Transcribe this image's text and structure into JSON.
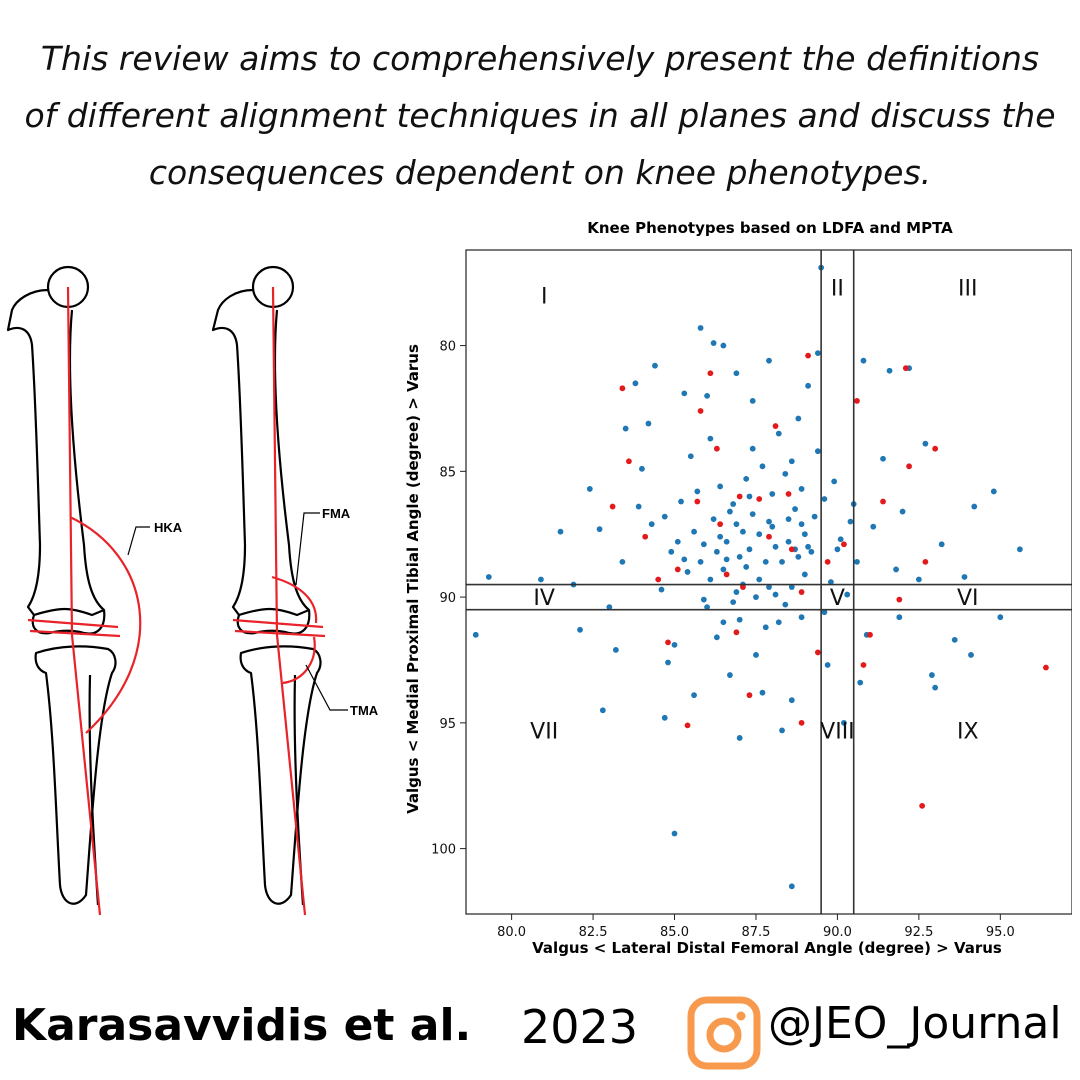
{
  "headline": "This review aims to comprehensively present the definitions of different alignment techniques in all planes and discuss the consequences dependent on knee phenotypes.",
  "leg_diagram": {
    "labels": {
      "hka": "HKA",
      "fma": "FMA",
      "tma": "TMA"
    },
    "line_color": "#e8232a"
  },
  "chart_data": {
    "type": "scatter",
    "title": "Knee Phenotypes based on LDFA and MPTA",
    "xlabel": "Valgus < Lateral Distal Femoral Angle (degree) > Varus",
    "ylabel": "Valgus < Medial Proximal Tibial Angle (degree) > Varus",
    "xlim": [
      78.6,
      97.2
    ],
    "ylim": [
      102.6,
      76.2
    ],
    "y_inverted": true,
    "xticks": [
      "80.0",
      "82.5",
      "85.0",
      "87.5",
      "90.0",
      "92.5",
      "95.0"
    ],
    "yticks": [
      "80",
      "85",
      "90",
      "95",
      "100"
    ],
    "vertical_lines": [
      89.5,
      90.5
    ],
    "horizontal_lines": [
      89.5,
      90.5
    ],
    "grid": false,
    "region_labels": [
      {
        "text": "I",
        "x": 81.0,
        "y": 78.0
      },
      {
        "text": "II",
        "x": 90.0,
        "y": 77.7
      },
      {
        "text": "III",
        "x": 94.0,
        "y": 77.7
      },
      {
        "text": "IV",
        "x": 81.0,
        "y": 90.0
      },
      {
        "text": "V",
        "x": 90.0,
        "y": 90.0
      },
      {
        "text": "VI",
        "x": 94.0,
        "y": 90.0
      },
      {
        "text": "VII",
        "x": 81.0,
        "y": 95.3
      },
      {
        "text": "VIII",
        "x": 90.0,
        "y": 95.3
      },
      {
        "text": "IX",
        "x": 94.0,
        "y": 95.3
      }
    ],
    "series": [
      {
        "color": "#1f77b4",
        "points": [
          [
            88.3,
            88.6
          ],
          [
            87.1,
            87.4
          ],
          [
            86.5,
            88.9
          ],
          [
            88.9,
            87.1
          ],
          [
            87.6,
            89.3
          ],
          [
            85.9,
            87.9
          ],
          [
            89.2,
            88.2
          ],
          [
            86.8,
            86.3
          ],
          [
            88.0,
            85.9
          ],
          [
            87.3,
            88.1
          ],
          [
            85.4,
            89.0
          ],
          [
            90.1,
            87.7
          ],
          [
            88.6,
            89.6
          ],
          [
            86.2,
            86.9
          ],
          [
            87.9,
            87.0
          ],
          [
            89.6,
            86.1
          ],
          [
            84.9,
            88.2
          ],
          [
            88.4,
            90.3
          ],
          [
            86.9,
            89.8
          ],
          [
            87.7,
            84.8
          ],
          [
            90.6,
            88.6
          ],
          [
            85.7,
            85.8
          ],
          [
            88.1,
            88.0
          ],
          [
            87.0,
            88.4
          ],
          [
            86.4,
            87.6
          ],
          [
            89.0,
            89.1
          ],
          [
            87.4,
            86.7
          ],
          [
            88.7,
            86.5
          ],
          [
            86.0,
            90.4
          ],
          [
            91.1,
            87.2
          ],
          [
            84.3,
            87.1
          ],
          [
            87.8,
            91.2
          ],
          [
            89.4,
            84.2
          ],
          [
            85.2,
            86.2
          ],
          [
            88.5,
            87.8
          ],
          [
            86.6,
            88.5
          ],
          [
            87.2,
            85.3
          ],
          [
            90.3,
            89.9
          ],
          [
            86.3,
            91.6
          ],
          [
            88.9,
            90.8
          ],
          [
            84.6,
            89.7
          ],
          [
            91.8,
            88.9
          ],
          [
            83.9,
            86.4
          ],
          [
            87.5,
            92.3
          ],
          [
            89.9,
            85.4
          ],
          [
            85.5,
            84.4
          ],
          [
            92.0,
            86.6
          ],
          [
            86.1,
            83.7
          ],
          [
            88.2,
            83.5
          ],
          [
            83.4,
            88.6
          ],
          [
            90.9,
            91.5
          ],
          [
            85.0,
            91.9
          ],
          [
            92.5,
            89.3
          ],
          [
            84.0,
            84.9
          ],
          [
            89.7,
            92.7
          ],
          [
            86.7,
            93.1
          ],
          [
            88.8,
            82.9
          ],
          [
            91.4,
            84.5
          ],
          [
            83.0,
            90.4
          ],
          [
            87.4,
            82.2
          ],
          [
            93.2,
            87.9
          ],
          [
            84.8,
            92.6
          ],
          [
            82.7,
            87.3
          ],
          [
            90.7,
            93.4
          ],
          [
            86.0,
            82.0
          ],
          [
            88.6,
            94.1
          ],
          [
            91.9,
            90.8
          ],
          [
            82.4,
            85.7
          ],
          [
            93.9,
            89.2
          ],
          [
            85.6,
            93.9
          ],
          [
            89.1,
            81.6
          ],
          [
            84.2,
            83.1
          ],
          [
            92.7,
            83.9
          ],
          [
            81.9,
            89.5
          ],
          [
            90.2,
            95.0
          ],
          [
            86.9,
            81.1
          ],
          [
            94.2,
            86.4
          ],
          [
            83.2,
            92.1
          ],
          [
            87.9,
            80.6
          ],
          [
            82.1,
            91.3
          ],
          [
            93.6,
            91.7
          ],
          [
            85.3,
            81.9
          ],
          [
            89.4,
            80.3
          ],
          [
            81.5,
            87.4
          ],
          [
            94.8,
            85.8
          ],
          [
            84.7,
            94.8
          ],
          [
            86.2,
            79.9
          ],
          [
            92.9,
            93.1
          ],
          [
            80.9,
            89.3
          ],
          [
            88.3,
            95.3
          ],
          [
            83.8,
            81.5
          ],
          [
            91.6,
            81.0
          ],
          [
            95.0,
            90.8
          ],
          [
            87.0,
            95.6
          ],
          [
            84.4,
            80.8
          ],
          [
            79.3,
            89.2
          ],
          [
            89.5,
            76.9
          ],
          [
            85.8,
            79.3
          ],
          [
            92.2,
            80.9
          ],
          [
            82.8,
            94.5
          ],
          [
            95.6,
            88.1
          ],
          [
            93.0,
            93.6
          ],
          [
            88.6,
            101.5
          ],
          [
            85.0,
            99.4
          ],
          [
            78.9,
            91.5
          ],
          [
            94.1,
            92.3
          ],
          [
            86.5,
            80.0
          ],
          [
            90.8,
            80.6
          ],
          [
            83.5,
            83.3
          ],
          [
            87.7,
            93.8
          ],
          [
            88.0,
            87.2
          ],
          [
            87.2,
            88.8
          ],
          [
            86.6,
            87.8
          ],
          [
            89.1,
            88.0
          ],
          [
            88.5,
            86.9
          ],
          [
            86.9,
            87.1
          ],
          [
            87.5,
            90.0
          ],
          [
            85.8,
            88.6
          ],
          [
            89.8,
            89.4
          ],
          [
            88.8,
            88.4
          ],
          [
            87.3,
            86.0
          ],
          [
            86.1,
            89.3
          ],
          [
            88.1,
            89.9
          ],
          [
            89.3,
            86.8
          ],
          [
            85.6,
            87.4
          ],
          [
            87.8,
            88.6
          ],
          [
            86.4,
            85.6
          ],
          [
            90.4,
            87.0
          ],
          [
            88.4,
            85.1
          ],
          [
            85.1,
            87.8
          ],
          [
            87.6,
            87.5
          ],
          [
            86.8,
            90.2
          ],
          [
            89.6,
            90.6
          ],
          [
            87.1,
            89.5
          ],
          [
            88.7,
            88.1
          ],
          [
            86.3,
            88.2
          ],
          [
            90.0,
            88.1
          ],
          [
            85.3,
            88.5
          ],
          [
            88.9,
            85.7
          ],
          [
            87.9,
            89.6
          ],
          [
            86.7,
            86.6
          ],
          [
            89.0,
            87.5
          ],
          [
            85.9,
            90.1
          ],
          [
            88.2,
            91.0
          ],
          [
            87.4,
            84.1
          ],
          [
            86.5,
            91.0
          ],
          [
            90.5,
            86.3
          ],
          [
            84.7,
            86.8
          ],
          [
            88.6,
            84.6
          ],
          [
            87.0,
            90.9
          ]
        ]
      },
      {
        "color": "#e31a1c",
        "points": [
          [
            87.6,
            86.1
          ],
          [
            85.1,
            88.9
          ],
          [
            88.9,
            89.8
          ],
          [
            86.3,
            84.1
          ],
          [
            90.2,
            87.9
          ],
          [
            84.1,
            87.6
          ],
          [
            88.1,
            83.2
          ],
          [
            86.9,
            91.4
          ],
          [
            91.4,
            86.2
          ],
          [
            83.1,
            86.4
          ],
          [
            89.4,
            92.2
          ],
          [
            85.8,
            82.6
          ],
          [
            92.2,
            84.8
          ],
          [
            84.8,
            91.8
          ],
          [
            90.6,
            82.2
          ],
          [
            87.3,
            93.9
          ],
          [
            92.7,
            88.6
          ],
          [
            83.6,
            84.6
          ],
          [
            89.1,
            80.4
          ],
          [
            86.1,
            81.1
          ],
          [
            93.0,
            84.1
          ],
          [
            85.4,
            95.1
          ],
          [
            91.0,
            91.5
          ],
          [
            83.4,
            81.7
          ],
          [
            88.9,
            95.0
          ],
          [
            90.8,
            92.7
          ],
          [
            92.1,
            80.9
          ],
          [
            92.6,
            98.3
          ],
          [
            96.4,
            92.8
          ],
          [
            91.9,
            90.1
          ],
          [
            87.9,
            87.6
          ],
          [
            86.4,
            87.1
          ],
          [
            88.6,
            88.1
          ],
          [
            87.1,
            89.6
          ],
          [
            85.7,
            86.2
          ],
          [
            89.7,
            88.6
          ],
          [
            87.0,
            86.0
          ],
          [
            86.6,
            89.1
          ],
          [
            88.5,
            85.9
          ],
          [
            84.5,
            89.3
          ]
        ]
      }
    ]
  },
  "footer": {
    "author": "Karasavvidis et al.",
    "year": "2023",
    "handle": "@JEO_Journal",
    "icon": "instagram-icon",
    "icon_color": "#f79a4e"
  }
}
